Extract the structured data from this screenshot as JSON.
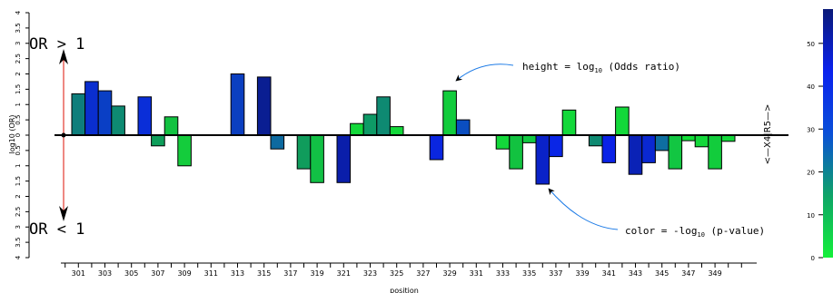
{
  "chart_data": {
    "type": "bar",
    "xlabel": "position",
    "ylabel": "log10 (OR)",
    "ylim": [
      -4,
      4
    ],
    "y_ticks": [
      4,
      3.5,
      3,
      2.5,
      2,
      1.5,
      1,
      0.5,
      0,
      0.5,
      1,
      1.5,
      2,
      2.5,
      3,
      3.5,
      4
    ],
    "x_ticks": [
      301,
      303,
      305,
      307,
      309,
      311,
      313,
      315,
      317,
      319,
      321,
      323,
      325,
      327,
      329,
      331,
      333,
      335,
      337,
      339,
      341,
      343,
      345,
      347,
      349
    ],
    "side_label": "<—X4|R5—>",
    "colorbar": {
      "ticks": [
        0,
        10,
        20,
        30,
        40,
        50
      ],
      "range": [
        0,
        58
      ]
    },
    "annotations": {
      "or_gt": "OR > 1",
      "or_lt": "OR < 1",
      "height_prefix": "height = log",
      "height_sub": "10",
      "height_suffix": " (Odds ratio)",
      "color_prefix": "color = -log",
      "color_sub": "10",
      "color_suffix": " (p-value)"
    },
    "bars": [
      {
        "x": 301,
        "value": 1.35,
        "color": "#0e7e7c"
      },
      {
        "x": 302,
        "value": 1.75,
        "color": "#0a2ecf"
      },
      {
        "x": 303,
        "value": 1.45,
        "color": "#0a3fc5"
      },
      {
        "x": 304,
        "value": 0.95,
        "color": "#0e8a72"
      },
      {
        "x": 306,
        "value": 1.25,
        "color": "#0a2ed8"
      },
      {
        "x": 307,
        "value": -0.35,
        "color": "#0e9e5a"
      },
      {
        "x": 308,
        "value": 0.6,
        "color": "#12c241"
      },
      {
        "x": 309,
        "value": -1.0,
        "color": "#14cc3c"
      },
      {
        "x": 313,
        "value": 2.0,
        "color": "#0b3fc0"
      },
      {
        "x": 315,
        "value": 1.9,
        "color": "#0a1e92"
      },
      {
        "x": 316,
        "value": -0.45,
        "color": "#0d6aa0"
      },
      {
        "x": 318,
        "value": -1.1,
        "color": "#109c5c"
      },
      {
        "x": 319,
        "value": -1.55,
        "color": "#12c045"
      },
      {
        "x": 321,
        "value": -1.55,
        "color": "#0a1eaa"
      },
      {
        "x": 322,
        "value": 0.38,
        "color": "#13d83a"
      },
      {
        "x": 323,
        "value": 0.68,
        "color": "#0e9a66"
      },
      {
        "x": 324,
        "value": 1.25,
        "color": "#0e8a72"
      },
      {
        "x": 325,
        "value": 0.28,
        "color": "#13d83a"
      },
      {
        "x": 328,
        "value": -0.8,
        "color": "#0a26e0"
      },
      {
        "x": 329,
        "value": 1.45,
        "color": "#12cc3c"
      },
      {
        "x": 330,
        "value": 0.5,
        "color": "#0b4ec0"
      },
      {
        "x": 333,
        "value": -0.45,
        "color": "#13d83a"
      },
      {
        "x": 334,
        "value": -1.1,
        "color": "#12c240"
      },
      {
        "x": 335,
        "value": -0.25,
        "color": "#12c942"
      },
      {
        "x": 336,
        "value": -1.6,
        "color": "#0a22c8"
      },
      {
        "x": 337,
        "value": -0.7,
        "color": "#0a26e6"
      },
      {
        "x": 338,
        "value": 0.82,
        "color": "#13d83a"
      },
      {
        "x": 340,
        "value": -0.35,
        "color": "#0e8a72"
      },
      {
        "x": 341,
        "value": -0.9,
        "color": "#0a22e6"
      },
      {
        "x": 342,
        "value": 0.92,
        "color": "#13d83a"
      },
      {
        "x": 343,
        "value": -1.28,
        "color": "#0a22b6"
      },
      {
        "x": 344,
        "value": -0.9,
        "color": "#0a28d2"
      },
      {
        "x": 345,
        "value": -0.5,
        "color": "#0e6ea0"
      },
      {
        "x": 346,
        "value": -1.1,
        "color": "#12c642"
      },
      {
        "x": 347,
        "value": -0.18,
        "color": "#13de38"
      },
      {
        "x": 348,
        "value": -0.38,
        "color": "#13d83a"
      },
      {
        "x": 349,
        "value": -1.1,
        "color": "#12cc3c"
      },
      {
        "x": 350,
        "value": -0.2,
        "color": "#13d83a"
      }
    ]
  }
}
